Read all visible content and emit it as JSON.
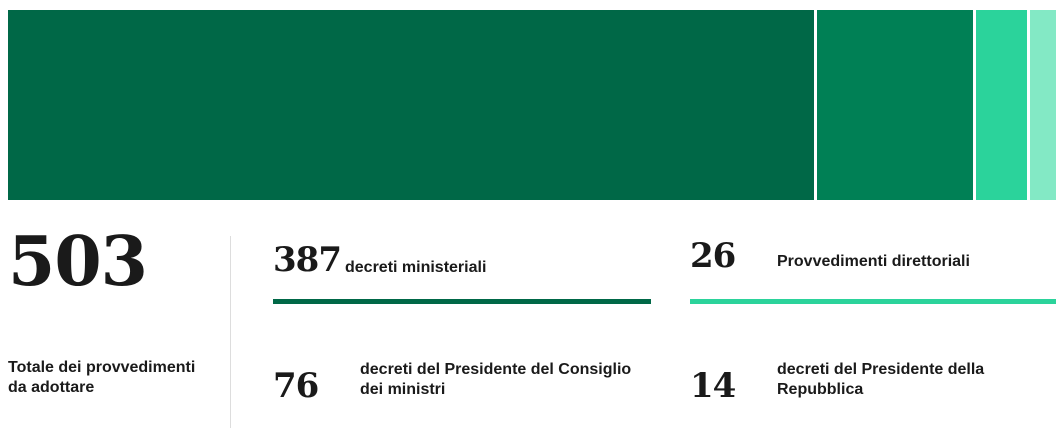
{
  "chart_data": {
    "type": "stacked-bar",
    "total": 503,
    "total_label": "Totale dei provvedimenti da adottare",
    "series": [
      {
        "name": "decreti ministeriali",
        "color": "#006847",
        "values": [
          387
        ]
      },
      {
        "name": "decreti del Presidente del Consiglio dei ministri",
        "color": "#008055",
        "values": [
          76
        ]
      },
      {
        "name": "Provvedimenti direttoriali",
        "color": "#2bd39b",
        "values": [
          26
        ]
      },
      {
        "name": "decreti del Presidente della Repubblica",
        "color": "#83e9c5",
        "values": [
          14
        ]
      }
    ]
  }
}
